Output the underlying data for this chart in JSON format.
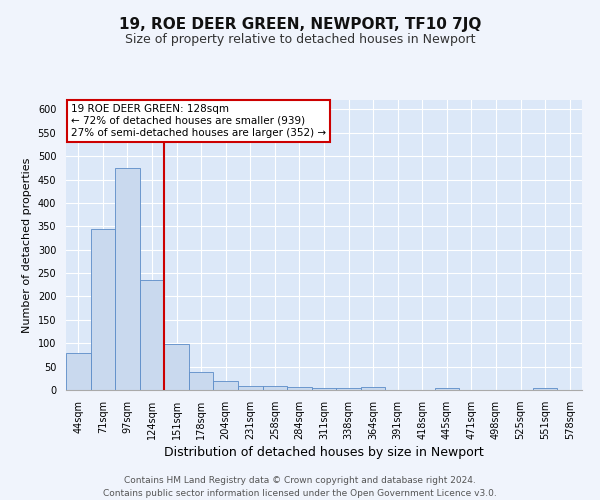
{
  "title": "19, ROE DEER GREEN, NEWPORT, TF10 7JQ",
  "subtitle": "Size of property relative to detached houses in Newport",
  "xlabel": "Distribution of detached houses by size in Newport",
  "ylabel": "Number of detached properties",
  "bar_labels": [
    "44sqm",
    "71sqm",
    "97sqm",
    "124sqm",
    "151sqm",
    "178sqm",
    "204sqm",
    "231sqm",
    "258sqm",
    "284sqm",
    "311sqm",
    "338sqm",
    "364sqm",
    "391sqm",
    "418sqm",
    "445sqm",
    "471sqm",
    "498sqm",
    "525sqm",
    "551sqm",
    "578sqm"
  ],
  "bar_values": [
    80,
    345,
    475,
    235,
    98,
    38,
    20,
    8,
    9,
    6,
    5,
    5,
    6,
    0,
    0,
    5,
    0,
    0,
    0,
    5,
    0
  ],
  "bar_color": "#c9d9ee",
  "bar_edge_color": "#5b8cc8",
  "background_color": "#dce8f8",
  "grid_color": "#ffffff",
  "fig_background_color": "#f0f4fc",
  "vline_x": 3.5,
  "vline_color": "#cc0000",
  "annotation_text": "19 ROE DEER GREEN: 128sqm\n← 72% of detached houses are smaller (939)\n27% of semi-detached houses are larger (352) →",
  "annotation_box_color": "#ffffff",
  "annotation_box_edge_color": "#cc0000",
  "ylim": [
    0,
    620
  ],
  "yticks": [
    0,
    50,
    100,
    150,
    200,
    250,
    300,
    350,
    400,
    450,
    500,
    550,
    600
  ],
  "footnote": "Contains HM Land Registry data © Crown copyright and database right 2024.\nContains public sector information licensed under the Open Government Licence v3.0.",
  "title_fontsize": 11,
  "subtitle_fontsize": 9,
  "xlabel_fontsize": 9,
  "ylabel_fontsize": 8,
  "tick_fontsize": 7,
  "annotation_fontsize": 7.5,
  "footnote_fontsize": 6.5
}
